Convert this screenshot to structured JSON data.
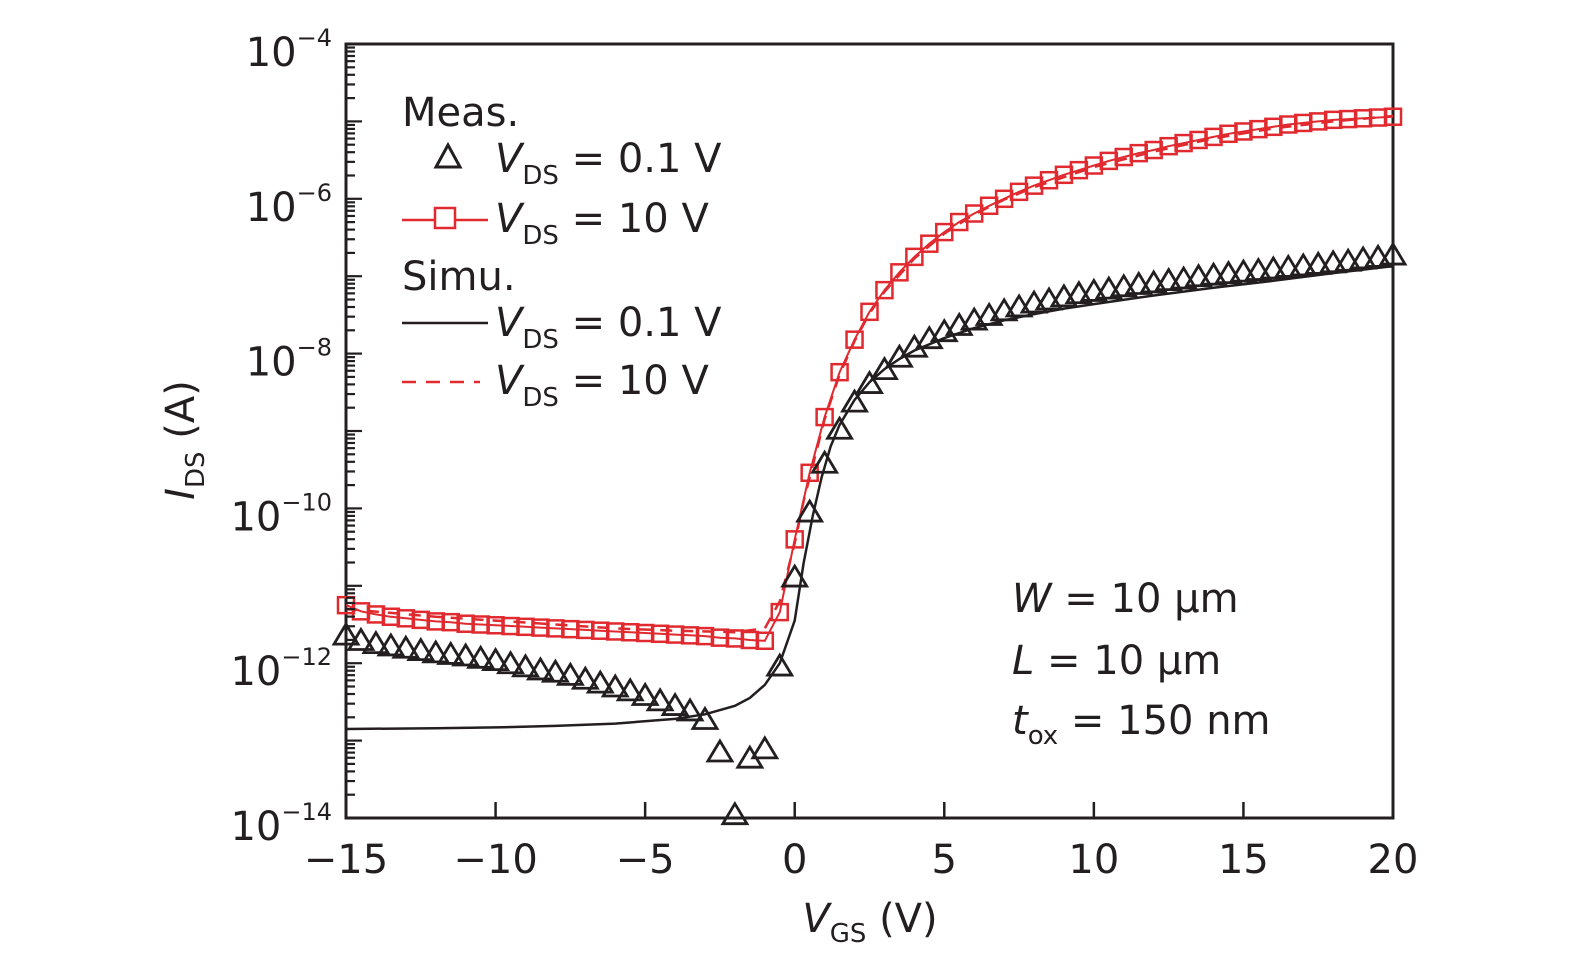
{
  "chart_data": {
    "type": "scatter",
    "title": "",
    "xlabel": {
      "main": "V",
      "sub": "GS",
      "unit": " (V)"
    },
    "ylabel": {
      "main": "I",
      "sub": "DS",
      "unit": " (A)"
    },
    "xlim": [
      -15,
      20
    ],
    "ylim_log10": [
      -14,
      -4
    ],
    "yscale": "log",
    "x_ticks": [
      -15,
      -10,
      -5,
      0,
      5,
      10,
      15,
      20
    ],
    "x_tick_labels": [
      "−15",
      "−10",
      "−5",
      "0",
      "5",
      "10",
      "15",
      "20"
    ],
    "y_ticks_log10": [
      -4,
      -6,
      -8,
      -10,
      -12,
      -14
    ],
    "y_tick_labels": [
      {
        "base": "10",
        "exp": "−4"
      },
      {
        "base": "10",
        "exp": "−6"
      },
      {
        "base": "10",
        "exp": "−8"
      },
      {
        "base": "10",
        "exp": "−10"
      },
      {
        "base": "10",
        "exp": "−12"
      },
      {
        "base": "10",
        "exp": "−14"
      }
    ],
    "grid": false,
    "legend": {
      "placement": "top-left",
      "groups": [
        {
          "heading": "Meas.",
          "entries": [
            {
              "marker": "triangle",
              "color": "#231f20",
              "label_main": "V",
              "label_sub": "DS",
              "label_rest": " = 0.1 V"
            },
            {
              "marker": "square-line",
              "color": "#e02a2f",
              "label_main": "V",
              "label_sub": "DS",
              "label_rest": " = 10 V"
            }
          ]
        },
        {
          "heading": "Simu.",
          "entries": [
            {
              "marker": "solid-line",
              "color": "#231f20",
              "label_main": "V",
              "label_sub": "DS",
              "label_rest": " =  0.1 V"
            },
            {
              "marker": "dashed-line",
              "color": "#e02a2f",
              "label_main": "V",
              "label_sub": "DS",
              "label_rest": " = 10 V"
            }
          ]
        }
      ]
    },
    "annotation": [
      {
        "main": "W",
        "sub": "",
        "rest": " = 10 µm"
      },
      {
        "main": "L",
        "sub": "",
        "rest": " = 10 µm"
      },
      {
        "main": "t",
        "sub": "ox",
        "rest": " = 150 nm"
      }
    ],
    "series": [
      {
        "name": "Meas. VDS = 0.1 V",
        "style": "triangle",
        "color": "#231f20",
        "x": [
          -15,
          -14.5,
          -14,
          -13.5,
          -13,
          -12.5,
          -12,
          -11.5,
          -11,
          -10.5,
          -10,
          -9.5,
          -9,
          -8.5,
          -8,
          -7.5,
          -7,
          -6.5,
          -6,
          -5.5,
          -5,
          -4.5,
          -4,
          -3.5,
          -3,
          -2.5,
          -2,
          -1.5,
          -1,
          -0.5,
          0,
          0.5,
          1,
          1.5,
          2,
          2.5,
          3,
          3.5,
          4,
          4.5,
          5,
          5.5,
          6,
          6.5,
          7,
          7.5,
          8,
          8.5,
          9,
          9.5,
          10,
          10.5,
          11,
          11.5,
          12,
          12.5,
          13,
          13.5,
          14,
          14.5,
          15,
          15.5,
          16,
          16.5,
          17,
          17.5,
          18,
          18.5,
          19,
          19.5,
          20
        ],
        "log10_y": [
          -11.65,
          -11.72,
          -11.76,
          -11.79,
          -11.82,
          -11.85,
          -11.88,
          -11.9,
          -11.92,
          -11.95,
          -11.98,
          -12.02,
          -12.06,
          -12.1,
          -12.13,
          -12.17,
          -12.22,
          -12.27,
          -12.32,
          -12.37,
          -12.43,
          -12.5,
          -12.56,
          -12.63,
          -12.74,
          -13.16,
          -13.97,
          -13.24,
          -13.12,
          -12.05,
          -10.9,
          -10.06,
          -9.43,
          -8.99,
          -8.64,
          -8.4,
          -8.22,
          -8.06,
          -7.93,
          -7.82,
          -7.73,
          -7.65,
          -7.58,
          -7.52,
          -7.46,
          -7.41,
          -7.36,
          -7.32,
          -7.28,
          -7.24,
          -7.21,
          -7.18,
          -7.15,
          -7.12,
          -7.1,
          -7.07,
          -7.05,
          -7.02,
          -7.0,
          -6.98,
          -6.96,
          -6.94,
          -6.92,
          -6.9,
          -6.88,
          -6.86,
          -6.84,
          -6.82,
          -6.79,
          -6.77,
          -6.74
        ]
      },
      {
        "name": "Meas. VDS = 10 V",
        "style": "square-line",
        "color": "#e02a2f",
        "x": [
          -15,
          -14.5,
          -14,
          -13.5,
          -13,
          -12.5,
          -12,
          -11.5,
          -11,
          -10.5,
          -10,
          -9.5,
          -9,
          -8.5,
          -8,
          -7.5,
          -7,
          -6.5,
          -6,
          -5.5,
          -5,
          -4.5,
          -4,
          -3.5,
          -3,
          -2.5,
          -2,
          -1.5,
          -1,
          -0.5,
          0,
          0.5,
          1,
          1.5,
          2,
          2.5,
          3,
          3.5,
          4,
          4.5,
          5,
          5.5,
          6,
          6.5,
          7,
          7.5,
          8,
          8.5,
          9,
          9.5,
          10,
          10.5,
          11,
          11.5,
          12,
          12.5,
          13,
          13.5,
          14,
          14.5,
          15,
          15.5,
          16,
          16.5,
          17,
          17.5,
          18,
          18.5,
          19,
          19.5,
          20
        ],
        "log10_y": [
          -11.25,
          -11.33,
          -11.37,
          -11.4,
          -11.42,
          -11.44,
          -11.46,
          -11.47,
          -11.49,
          -11.5,
          -11.51,
          -11.52,
          -11.53,
          -11.54,
          -11.55,
          -11.56,
          -11.57,
          -11.58,
          -11.59,
          -11.6,
          -11.61,
          -11.62,
          -11.63,
          -11.64,
          -11.65,
          -11.67,
          -11.68,
          -11.7,
          -11.71,
          -11.34,
          -10.4,
          -9.54,
          -8.82,
          -8.24,
          -7.82,
          -7.46,
          -7.18,
          -6.95,
          -6.75,
          -6.58,
          -6.43,
          -6.3,
          -6.19,
          -6.09,
          -6.0,
          -5.91,
          -5.83,
          -5.76,
          -5.69,
          -5.63,
          -5.57,
          -5.51,
          -5.46,
          -5.41,
          -5.37,
          -5.32,
          -5.28,
          -5.24,
          -5.2,
          -5.16,
          -5.13,
          -5.1,
          -5.07,
          -5.04,
          -5.02,
          -5.0,
          -4.98,
          -4.97,
          -4.96,
          -4.95,
          -4.94
        ]
      },
      {
        "name": "Simu. VDS = 0.1 V",
        "style": "solid-line",
        "color": "#231f20",
        "x": [
          -15,
          -12,
          -10,
          -8,
          -6,
          -4,
          -3,
          -2,
          -1.5,
          -1,
          -0.5,
          0,
          0.3,
          0.6,
          0.9,
          1.2,
          1.5,
          2,
          2.5,
          3,
          3.5,
          4,
          5,
          6,
          7,
          8,
          9,
          10,
          12,
          14,
          16,
          18,
          20
        ],
        "log10_y": [
          -12.85,
          -12.84,
          -12.83,
          -12.81,
          -12.78,
          -12.72,
          -12.66,
          -12.55,
          -12.45,
          -12.28,
          -12.0,
          -11.45,
          -10.7,
          -10.1,
          -9.6,
          -9.2,
          -8.92,
          -8.6,
          -8.37,
          -8.2,
          -8.07,
          -7.96,
          -7.8,
          -7.67,
          -7.57,
          -7.49,
          -7.42,
          -7.36,
          -7.25,
          -7.15,
          -7.06,
          -6.96,
          -6.87
        ]
      },
      {
        "name": "Simu. VDS = 10 V",
        "style": "dashed-line",
        "color": "#e02a2f",
        "x": [
          -15,
          -12,
          -10,
          -8,
          -6,
          -4,
          -2,
          -1,
          -0.5,
          0,
          0.3,
          0.6,
          1,
          1.5,
          2,
          2.5,
          3,
          4,
          5,
          6,
          7,
          8,
          10,
          12,
          14,
          16,
          18,
          20
        ],
        "log10_y": [
          -11.3,
          -11.4,
          -11.45,
          -11.5,
          -11.55,
          -11.58,
          -11.6,
          -11.55,
          -11.2,
          -10.45,
          -9.9,
          -9.45,
          -8.85,
          -8.27,
          -7.84,
          -7.48,
          -7.2,
          -6.77,
          -6.45,
          -6.2,
          -6.01,
          -5.85,
          -5.59,
          -5.39,
          -5.22,
          -5.09,
          -5.0,
          -4.93
        ]
      }
    ]
  }
}
